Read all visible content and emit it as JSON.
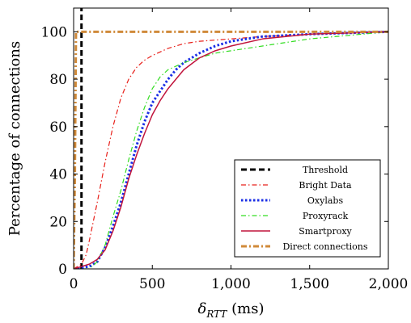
{
  "chart_data": {
    "type": "line",
    "title": "",
    "xlabel": "δRTT (ms)",
    "xlabel_main": "δ",
    "xlabel_sub": "RTT",
    "xlabel_unit": " (ms)",
    "ylabel": "Percentage of connections",
    "xlim": [
      0,
      2000
    ],
    "ylim": [
      0,
      110
    ],
    "x_ticks": [
      0,
      500,
      1000,
      1500,
      2000
    ],
    "x_tick_labels": [
      "0",
      "500",
      "1,000",
      "1,500",
      "2,000"
    ],
    "y_ticks": [
      0,
      20,
      40,
      60,
      80,
      100
    ],
    "y_tick_labels": [
      "0",
      "20",
      "40",
      "60",
      "80",
      "100"
    ],
    "grid": false,
    "legend_position": "bottom-right",
    "series": [
      {
        "name": "Threshold",
        "color": "#000000",
        "dash": "7,4",
        "width": 3,
        "points": [
          [
            50,
            0
          ],
          [
            50,
            110
          ]
        ]
      },
      {
        "name": "Bright Data",
        "color": "#e8201a",
        "dash": "6,3,1.5,3",
        "width": 1.2,
        "points": [
          [
            0,
            0
          ],
          [
            50,
            2
          ],
          [
            80,
            6
          ],
          [
            100,
            12
          ],
          [
            150,
            28
          ],
          [
            200,
            45
          ],
          [
            250,
            60
          ],
          [
            300,
            72
          ],
          [
            350,
            80
          ],
          [
            400,
            85
          ],
          [
            450,
            88
          ],
          [
            500,
            90
          ],
          [
            600,
            93
          ],
          [
            700,
            95
          ],
          [
            800,
            96
          ],
          [
            1000,
            97
          ],
          [
            1200,
            98
          ],
          [
            1500,
            99
          ],
          [
            2000,
            100
          ]
        ]
      },
      {
        "name": "Oxylabs",
        "color": "#1a2ee6",
        "dash": "2.5,2.5",
        "width": 3,
        "points": [
          [
            0,
            0
          ],
          [
            100,
            1
          ],
          [
            150,
            3
          ],
          [
            200,
            9
          ],
          [
            250,
            18
          ],
          [
            300,
            28
          ],
          [
            350,
            40
          ],
          [
            400,
            52
          ],
          [
            450,
            62
          ],
          [
            500,
            70
          ],
          [
            550,
            75
          ],
          [
            600,
            80
          ],
          [
            650,
            84
          ],
          [
            700,
            87
          ],
          [
            800,
            91
          ],
          [
            900,
            94
          ],
          [
            1000,
            96
          ],
          [
            1200,
            98
          ],
          [
            1500,
            99
          ],
          [
            2000,
            100
          ]
        ]
      },
      {
        "name": "Proxyrack",
        "color": "#33dd22",
        "dash": "6,3,1.5,3",
        "width": 1.2,
        "points": [
          [
            0,
            0
          ],
          [
            100,
            0
          ],
          [
            150,
            3
          ],
          [
            200,
            10
          ],
          [
            250,
            22
          ],
          [
            300,
            33
          ],
          [
            350,
            46
          ],
          [
            400,
            58
          ],
          [
            450,
            68
          ],
          [
            500,
            76
          ],
          [
            550,
            81
          ],
          [
            600,
            84
          ],
          [
            700,
            87
          ],
          [
            800,
            89
          ],
          [
            900,
            91
          ],
          [
            1000,
            92
          ],
          [
            1200,
            94
          ],
          [
            1500,
            97
          ],
          [
            2000,
            100
          ]
        ]
      },
      {
        "name": "Smartproxy",
        "color": "#c0143c",
        "dash": "",
        "width": 1.5,
        "points": [
          [
            0,
            0
          ],
          [
            100,
            2
          ],
          [
            150,
            4
          ],
          [
            200,
            8
          ],
          [
            250,
            16
          ],
          [
            300,
            26
          ],
          [
            350,
            38
          ],
          [
            400,
            48
          ],
          [
            450,
            57
          ],
          [
            500,
            65
          ],
          [
            550,
            71
          ],
          [
            600,
            76
          ],
          [
            700,
            84
          ],
          [
            800,
            89
          ],
          [
            900,
            92
          ],
          [
            1000,
            94
          ],
          [
            1200,
            97
          ],
          [
            1500,
            99
          ],
          [
            2000,
            100
          ]
        ]
      },
      {
        "name": "Direct connections",
        "color": "#d08a3a",
        "dash": "7,3,2,3",
        "width": 3,
        "points": [
          [
            0,
            0
          ],
          [
            8,
            40
          ],
          [
            15,
            100
          ],
          [
            2000,
            100
          ]
        ]
      }
    ]
  }
}
